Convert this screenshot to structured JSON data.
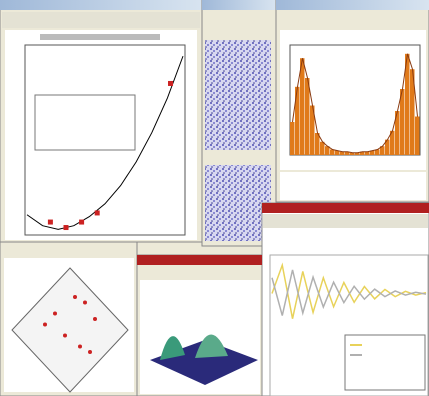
{
  "windows": [
    {
      "chart_data": {
        "type": "line",
        "x": [
          0,
          1,
          2,
          3,
          4,
          5,
          6,
          7,
          8,
          9,
          10
        ],
        "values": [
          8,
          2,
          0,
          2,
          7,
          14,
          24,
          37,
          53,
          72,
          95
        ],
        "xlim": [
          0,
          10
        ],
        "ylim": [
          -2,
          100
        ],
        "color": "#000000",
        "markers": {
          "x": [
            1.5,
            2.5,
            3.5,
            4.5,
            9.2
          ],
          "values": [
            4,
            1,
            4,
            9,
            80
          ],
          "color": "#cc2222"
        }
      }
    },
    {
      "chart_data": {
        "type": "bar",
        "values": [
          30,
          62,
          88,
          70,
          45,
          20,
          12,
          8,
          5,
          4,
          3,
          3,
          2,
          2,
          3,
          3,
          4,
          5,
          8,
          14,
          22,
          40,
          60,
          92,
          78,
          35
        ],
        "ylim": [
          0,
          100
        ],
        "color": "#e07a1a",
        "curve_color": "#8a3a10"
      }
    },
    {
      "chart_data": {
        "type": "line",
        "x": [
          0,
          2,
          4,
          6,
          8,
          10,
          12,
          14,
          16,
          18,
          20,
          22,
          24,
          26,
          28,
          30
        ],
        "series": [
          {
            "color": "#e8d25a",
            "values": [
              0,
              0.9,
              -0.8,
              0.7,
              -0.6,
              0.5,
              -0.42,
              0.35,
              -0.28,
              0.22,
              -0.17,
              0.13,
              -0.1,
              0.07,
              -0.05,
              0.03
            ]
          },
          {
            "color": "#b0b0b0",
            "values": [
              0.5,
              -0.7,
              0.75,
              -0.62,
              0.52,
              -0.43,
              0.36,
              -0.29,
              0.23,
              -0.18,
              0.14,
              -0.1,
              0.08,
              -0.05,
              0.04,
              -0.02
            ]
          }
        ],
        "xlim": [
          0,
          30
        ],
        "ylim": [
          -1,
          1
        ]
      }
    },
    {
      "chart_data": {
        "type": "scatter",
        "x": [
          -0.5,
          -0.3,
          0.1,
          0.3,
          0.5,
          0.2,
          -0.1,
          0.4
        ],
        "values": [
          0.1,
          0.3,
          0.6,
          0.5,
          0.2,
          -0.3,
          -0.1,
          -0.4
        ],
        "xlim": [
          -1,
          1
        ],
        "ylim": [
          -1,
          1
        ],
        "color": "#cc2222"
      }
    }
  ]
}
